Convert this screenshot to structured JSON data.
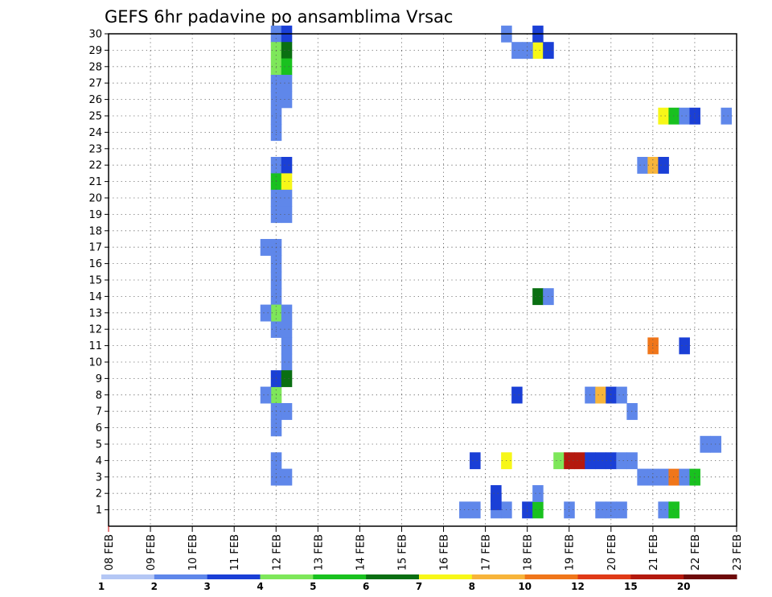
{
  "chart_data": {
    "type": "heatmap",
    "title": "GEFS 6hr padavine po ansamblima Vrsac",
    "xlabel": "",
    "ylabel": "",
    "x_tick_labels": [
      "08 FEB",
      "09 FEB",
      "10 FEB",
      "11 FEB",
      "12 FEB",
      "13 FEB",
      "14 FEB",
      "15 FEB",
      "16 FEB",
      "17 FEB",
      "18 FEB",
      "19 FEB",
      "20 FEB",
      "21 FEB",
      "22 FEB",
      "23 FEB"
    ],
    "y_tick_labels": [
      "1",
      "2",
      "3",
      "4",
      "5",
      "6",
      "7",
      "8",
      "9",
      "10",
      "11",
      "12",
      "13",
      "14",
      "15",
      "16",
      "17",
      "18",
      "19",
      "20",
      "21",
      "22",
      "23",
      "24",
      "25",
      "26",
      "27",
      "28",
      "29",
      "30"
    ],
    "xlim": [
      0,
      15
    ],
    "ylim": [
      0,
      30
    ],
    "grid": true,
    "colorbar": {
      "thresholds": [
        "1",
        "2",
        "3",
        "4",
        "5",
        "6",
        "7",
        "8",
        "10",
        "12",
        "15",
        "20"
      ],
      "colors": [
        "#b4c7f5",
        "#5f87ea",
        "#1a3fd6",
        "#7ee75a",
        "#19c11f",
        "#0a6f12",
        "#f7f718",
        "#f7b43a",
        "#f0761a",
        "#e03a17",
        "#b4190e",
        "#6e0a0a"
      ]
    },
    "cells": [
      [
        4.0,
        30,
        1
      ],
      [
        4.25,
        30,
        2
      ],
      [
        4.0,
        29,
        3
      ],
      [
        4.25,
        29,
        5
      ],
      [
        4.0,
        28,
        3
      ],
      [
        4.25,
        28,
        4
      ],
      [
        4.0,
        27,
        1
      ],
      [
        4.25,
        27,
        1
      ],
      [
        4.0,
        26,
        1
      ],
      [
        4.25,
        26,
        1
      ],
      [
        4.0,
        25,
        1
      ],
      [
        4.0,
        24,
        1
      ],
      [
        4.0,
        22,
        1
      ],
      [
        4.25,
        22,
        2
      ],
      [
        4.0,
        21,
        4
      ],
      [
        4.25,
        21,
        6
      ],
      [
        4.0,
        20,
        1
      ],
      [
        4.25,
        20,
        1
      ],
      [
        4.0,
        19,
        1
      ],
      [
        4.25,
        19,
        1
      ],
      [
        4.0,
        17,
        1
      ],
      [
        3.75,
        17,
        1
      ],
      [
        4.0,
        16,
        1
      ],
      [
        4.0,
        14,
        1
      ],
      [
        4.25,
        11,
        1
      ],
      [
        4.25,
        10,
        1
      ],
      [
        4.0,
        8,
        3
      ],
      [
        3.75,
        8,
        1
      ],
      [
        4.0,
        4,
        1
      ],
      [
        4.0,
        3,
        1
      ],
      [
        4.25,
        3,
        1
      ],
      [
        8.5,
        1,
        1
      ],
      [
        8.75,
        1,
        1
      ],
      [
        9.25,
        1,
        1
      ],
      [
        9.5,
        1,
        1
      ],
      [
        10.0,
        1,
        2
      ],
      [
        10.25,
        1,
        4
      ],
      [
        11.0,
        1,
        1
      ],
      [
        11.75,
        1,
        1
      ],
      [
        12.0,
        1,
        1
      ],
      [
        12.25,
        1,
        1
      ],
      [
        13.25,
        1,
        1
      ],
      [
        13.5,
        1,
        4
      ],
      [
        9.25,
        2,
        2
      ],
      [
        9.25,
        1.5,
        2
      ],
      [
        10.25,
        2,
        1
      ],
      [
        12.75,
        3,
        1
      ],
      [
        13.0,
        3,
        1
      ],
      [
        13.25,
        3,
        1
      ],
      [
        13.5,
        3,
        8
      ],
      [
        13.75,
        3,
        1
      ],
      [
        14.0,
        3,
        4
      ],
      [
        8.75,
        4,
        2
      ],
      [
        9.5,
        4,
        6
      ],
      [
        10.75,
        4,
        3
      ],
      [
        11.0,
        4,
        10
      ],
      [
        11.25,
        4,
        10
      ],
      [
        11.5,
        4,
        2
      ],
      [
        11.75,
        4,
        2
      ],
      [
        12.0,
        4,
        2
      ],
      [
        12.25,
        4,
        1
      ],
      [
        12.5,
        4,
        1
      ],
      [
        14.25,
        5,
        1
      ],
      [
        14.5,
        5,
        1
      ],
      [
        12.5,
        7,
        1
      ],
      [
        4.0,
        6,
        1
      ],
      [
        4.25,
        7,
        1
      ],
      [
        4.0,
        7,
        1
      ],
      [
        9.75,
        8,
        2
      ],
      [
        11.5,
        8,
        1
      ],
      [
        11.75,
        8,
        7
      ],
      [
        12.0,
        8,
        2
      ],
      [
        12.25,
        8,
        1
      ],
      [
        4.0,
        9,
        2
      ],
      [
        4.25,
        9,
        5
      ],
      [
        13.0,
        11,
        8
      ],
      [
        13.75,
        11,
        2
      ],
      [
        4.0,
        12,
        1
      ],
      [
        4.25,
        12,
        1
      ],
      [
        4.0,
        13,
        3
      ],
      [
        4.25,
        13,
        1
      ],
      [
        3.75,
        13,
        1
      ],
      [
        10.25,
        14,
        5
      ],
      [
        10.5,
        14,
        1
      ],
      [
        4.0,
        15,
        1
      ],
      [
        12.75,
        22,
        1
      ],
      [
        13.0,
        22,
        7
      ],
      [
        13.25,
        22,
        2
      ],
      [
        13.25,
        25,
        6
      ],
      [
        13.5,
        25,
        4
      ],
      [
        13.75,
        25,
        1
      ],
      [
        14.0,
        25,
        2
      ],
      [
        14.75,
        25,
        1
      ],
      [
        10.25,
        29,
        6
      ],
      [
        10.0,
        29,
        1
      ],
      [
        9.75,
        29,
        1
      ],
      [
        10.5,
        29,
        2
      ],
      [
        9.5,
        30,
        1
      ],
      [
        10.25,
        30,
        2
      ]
    ]
  }
}
